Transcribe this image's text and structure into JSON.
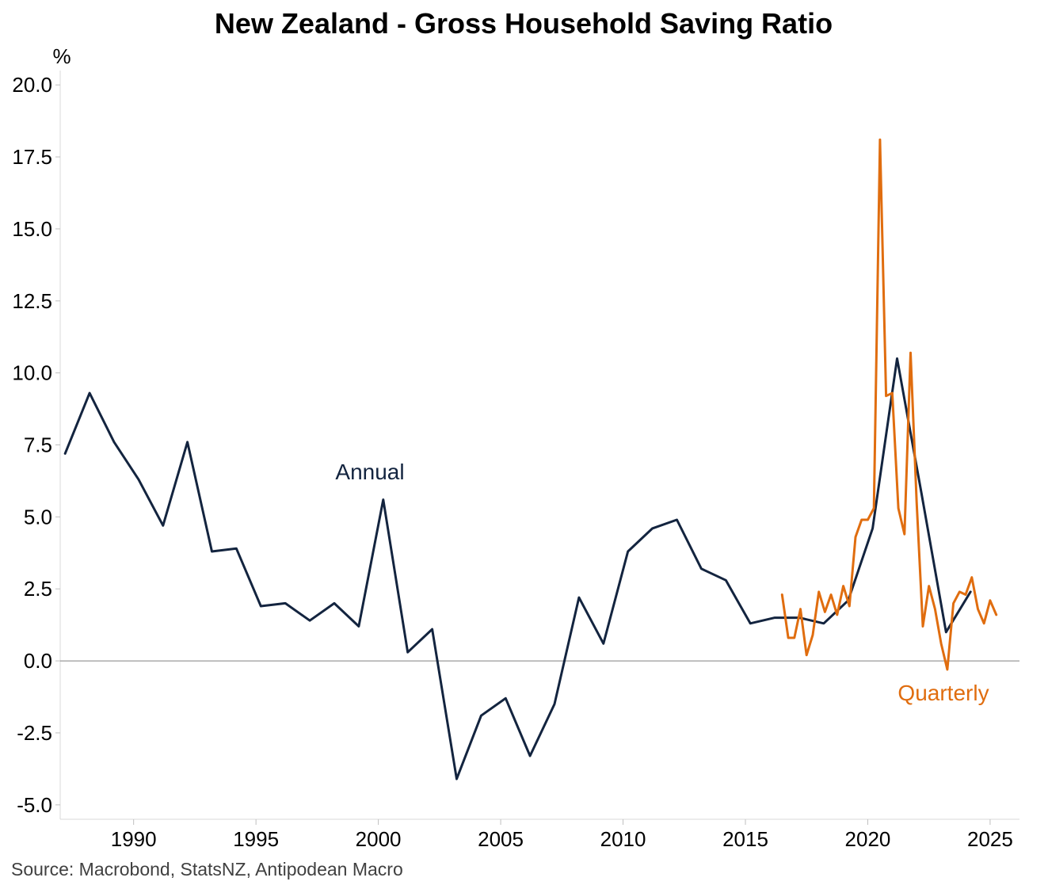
{
  "chart_data": {
    "type": "line",
    "title": "New Zealand - Gross Household Saving Ratio",
    "ylabel": "%",
    "xlabel": "",
    "source": "Source: Macrobond, StatsNZ, Antipodean Macro",
    "xlim": [
      1987.0,
      2026.2
    ],
    "ylim": [
      -5.5,
      20.5
    ],
    "yticks": [
      -5.0,
      -2.5,
      0.0,
      2.5,
      5.0,
      7.5,
      10.0,
      12.5,
      15.0,
      17.5,
      20.0
    ],
    "ytick_labels": [
      "-5.0",
      "-2.5",
      "0.0",
      "2.5",
      "5.0",
      "7.5",
      "10.0",
      "12.5",
      "15.0",
      "17.5",
      "20.0"
    ],
    "xticks": [
      1990,
      1995,
      2000,
      2005,
      2010,
      2015,
      2020,
      2025
    ],
    "xtick_labels": [
      "1990",
      "1995",
      "2000",
      "2005",
      "2010",
      "2015",
      "2020",
      "2025"
    ],
    "zero_line": true,
    "series": [
      {
        "name": "Annual",
        "label": "Annual",
        "color": "#13243f",
        "x": [
          1987.2,
          1988.2,
          1989.2,
          1990.2,
          1991.2,
          1992.2,
          1993.2,
          1994.2,
          1995.2,
          1996.2,
          1997.2,
          1998.2,
          1999.2,
          2000.2,
          2001.2,
          2002.2,
          2003.2,
          2004.2,
          2005.2,
          2006.2,
          2007.2,
          2008.2,
          2009.2,
          2010.2,
          2011.2,
          2012.2,
          2013.2,
          2014.2,
          2015.2,
          2016.2,
          2017.2,
          2018.2,
          2019.2,
          2020.2,
          2021.2,
          2022.2,
          2023.2,
          2024.2
        ],
        "values": [
          7.2,
          9.3,
          7.6,
          6.3,
          4.7,
          7.6,
          3.8,
          3.9,
          1.9,
          2.0,
          1.4,
          2.0,
          1.2,
          5.6,
          0.3,
          1.1,
          -4.1,
          -1.9,
          -1.3,
          -3.3,
          -1.5,
          2.2,
          0.6,
          3.8,
          4.6,
          4.9,
          3.2,
          2.8,
          1.3,
          1.5,
          1.5,
          1.3,
          2.1,
          4.6,
          10.5,
          5.8,
          1.0,
          2.4
        ]
      },
      {
        "name": "Quarterly",
        "label": "Quarterly",
        "color": "#e06d0f",
        "x": [
          2016.5,
          2016.75,
          2017.0,
          2017.25,
          2017.5,
          2017.75,
          2018.0,
          2018.25,
          2018.5,
          2018.75,
          2019.0,
          2019.25,
          2019.5,
          2019.75,
          2020.0,
          2020.25,
          2020.5,
          2020.75,
          2021.0,
          2021.25,
          2021.5,
          2021.75,
          2022.0,
          2022.25,
          2022.5,
          2022.75,
          2023.0,
          2023.25,
          2023.5,
          2023.75,
          2024.0,
          2024.25,
          2024.5,
          2024.75,
          2025.0,
          2025.25
        ],
        "values": [
          2.3,
          0.8,
          0.8,
          1.8,
          0.2,
          0.9,
          2.4,
          1.7,
          2.3,
          1.6,
          2.6,
          1.9,
          4.3,
          4.9,
          4.9,
          5.3,
          18.1,
          9.2,
          9.3,
          5.3,
          4.4,
          10.7,
          5.5,
          1.2,
          2.6,
          1.8,
          0.6,
          -0.3,
          2.0,
          2.4,
          2.3,
          2.9,
          1.8,
          1.3,
          2.1,
          1.6
        ]
      }
    ]
  }
}
